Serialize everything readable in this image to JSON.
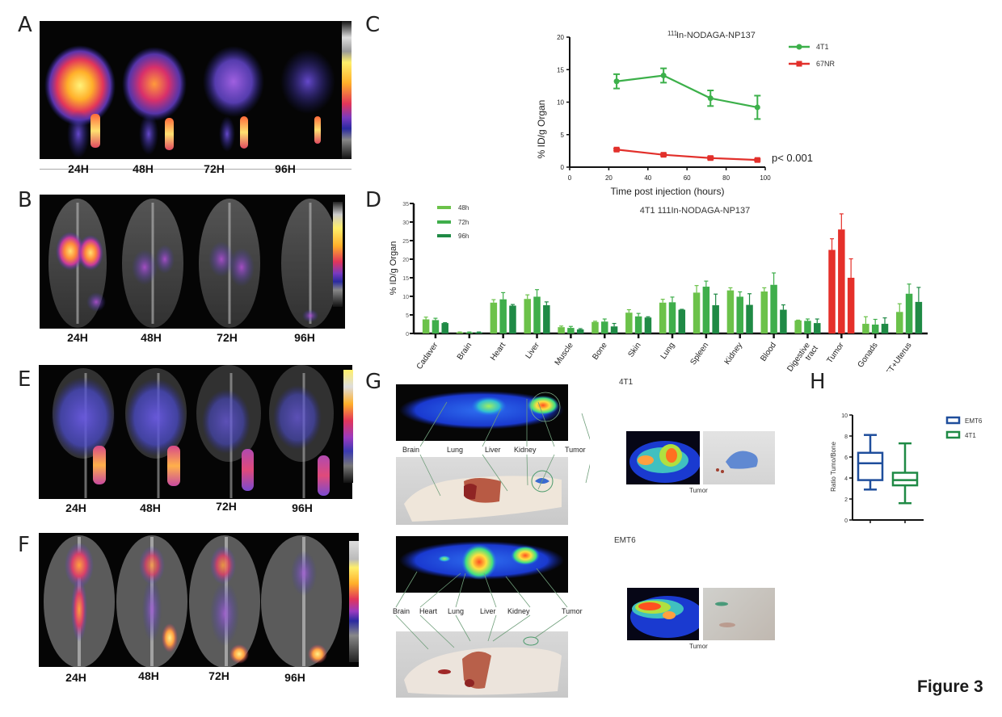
{
  "panels": {
    "A": {
      "letter": "A",
      "times": [
        "24H",
        "48H",
        "72H",
        "96H"
      ]
    },
    "B": {
      "letter": "B",
      "times": [
        "24H",
        "48H",
        "72H",
        "96H"
      ]
    },
    "E": {
      "letter": "E",
      "times": [
        "24H",
        "48H",
        "72H",
        "96H"
      ]
    },
    "F": {
      "letter": "F",
      "times": [
        "24H",
        "48H",
        "72H",
        "96H"
      ]
    },
    "C": {
      "letter": "C"
    },
    "D": {
      "letter": "D"
    },
    "G": {
      "letter": "G",
      "top_group": {
        "title": "4T1",
        "organs": [
          "Brain",
          "Lung",
          "Liver",
          "Kidney",
          "Tumor"
        ],
        "inset_caption": "Tumor"
      },
      "bottom_group": {
        "title": "EMT6",
        "organs": [
          "Brain",
          "Heart",
          "Lung",
          "Liver",
          "Kidney",
          "Tumor"
        ],
        "inset_caption": "Tumor"
      }
    },
    "H": {
      "letter": "H"
    }
  },
  "figure_label": "Figure 3",
  "colors": {
    "green_4t1": "#3cb04a",
    "red_67nr": "#e2302b",
    "bar_48h": "#6cc24a",
    "bar_72h": "#3fae4b",
    "bar_96h": "#1f8a45",
    "tumor_red": "#e5302a",
    "emt6_blue": "#1f4e9c",
    "h_green": "#1f8a45"
  },
  "chart_data": [
    {
      "id": "C",
      "type": "line",
      "title_sup": "111",
      "title": "In-NODAGA-NP137",
      "xlabel": "Time post injection (hours)",
      "ylabel": "% ID/g Organ",
      "xlim": [
        0,
        100
      ],
      "ylim": [
        0,
        20
      ],
      "xticks": [
        "0",
        "20",
        "40",
        "60",
        "80",
        "100"
      ],
      "yticks": [
        "0",
        "5",
        "10",
        "15",
        "20"
      ],
      "annotation": "p< 0.001",
      "series": [
        {
          "name": "4T1",
          "x": [
            24,
            48,
            72,
            96
          ],
          "y": [
            13.2,
            14.1,
            10.6,
            9.2
          ],
          "err": [
            1.1,
            1.1,
            1.2,
            1.8
          ],
          "marker": "circle"
        },
        {
          "name": "67NR",
          "x": [
            24,
            48,
            72,
            96
          ],
          "y": [
            2.7,
            1.9,
            1.4,
            1.1
          ],
          "err": [
            0.15,
            0.15,
            0.2,
            0.15
          ],
          "marker": "square"
        }
      ]
    },
    {
      "id": "D",
      "type": "bar",
      "title": "4T1  111In-NODAGA-NP137",
      "ylabel": "% ID/g Organ",
      "ylim": [
        0,
        35
      ],
      "yticks": [
        "0",
        "5",
        "10",
        "15",
        "20",
        "25",
        "30",
        "35"
      ],
      "categories": [
        "Cadaver",
        "Brain",
        "Heart",
        "Liver",
        "Muscle",
        "Bone",
        "Skin",
        "Lung",
        "Spleen",
        "Kidney",
        "Blood",
        "Digestive tract",
        "Tumor",
        "Gonads",
        "FT+Uterus"
      ],
      "series": [
        {
          "name": "48h",
          "values": [
            3.8,
            0.3,
            8.3,
            9.3,
            1.7,
            3.1,
            5.6,
            8.3,
            11.0,
            11.6,
            11.3,
            3.5,
            22.5,
            2.6,
            5.8
          ],
          "err": [
            0.6,
            0.1,
            0.8,
            1.1,
            0.3,
            0.2,
            0.8,
            0.9,
            1.9,
            0.7,
            1.0,
            0.1,
            3.0,
            1.9,
            2.2
          ]
        },
        {
          "name": "72h",
          "values": [
            3.6,
            0.3,
            9.2,
            9.9,
            1.5,
            3.2,
            4.6,
            8.4,
            12.6,
            9.9,
            13.1,
            3.4,
            28.0,
            2.4,
            10.7
          ],
          "err": [
            0.5,
            0.1,
            1.8,
            1.9,
            0.4,
            0.7,
            0.8,
            1.4,
            1.5,
            1.3,
            3.2,
            0.5,
            4.2,
            1.4,
            2.6
          ]
        },
        {
          "name": "96h",
          "values": [
            2.8,
            0.3,
            7.5,
            7.6,
            1.1,
            1.9,
            4.3,
            6.4,
            7.6,
            7.7,
            6.4,
            2.8,
            15.0,
            2.6,
            8.5
          ],
          "err": [
            0.1,
            0.1,
            0.3,
            0.9,
            0.2,
            0.8,
            0.2,
            0.1,
            3.0,
            3.0,
            1.3,
            1.1,
            5.1,
            1.6,
            3.9
          ]
        }
      ],
      "highlight_category": "Tumor"
    },
    {
      "id": "H",
      "type": "box",
      "ylabel": "Ratio Tumo/Bone",
      "ylim": [
        0,
        10
      ],
      "yticks": [
        "0",
        "2",
        "4",
        "6",
        "8",
        "10"
      ],
      "series": [
        {
          "name": "EMT6",
          "min": 2.9,
          "q1": 3.8,
          "median": 5.4,
          "q3": 6.4,
          "max": 8.1
        },
        {
          "name": "4T1",
          "min": 1.6,
          "q1": 3.3,
          "median": 3.8,
          "q3": 4.5,
          "max": 7.3
        }
      ]
    }
  ]
}
